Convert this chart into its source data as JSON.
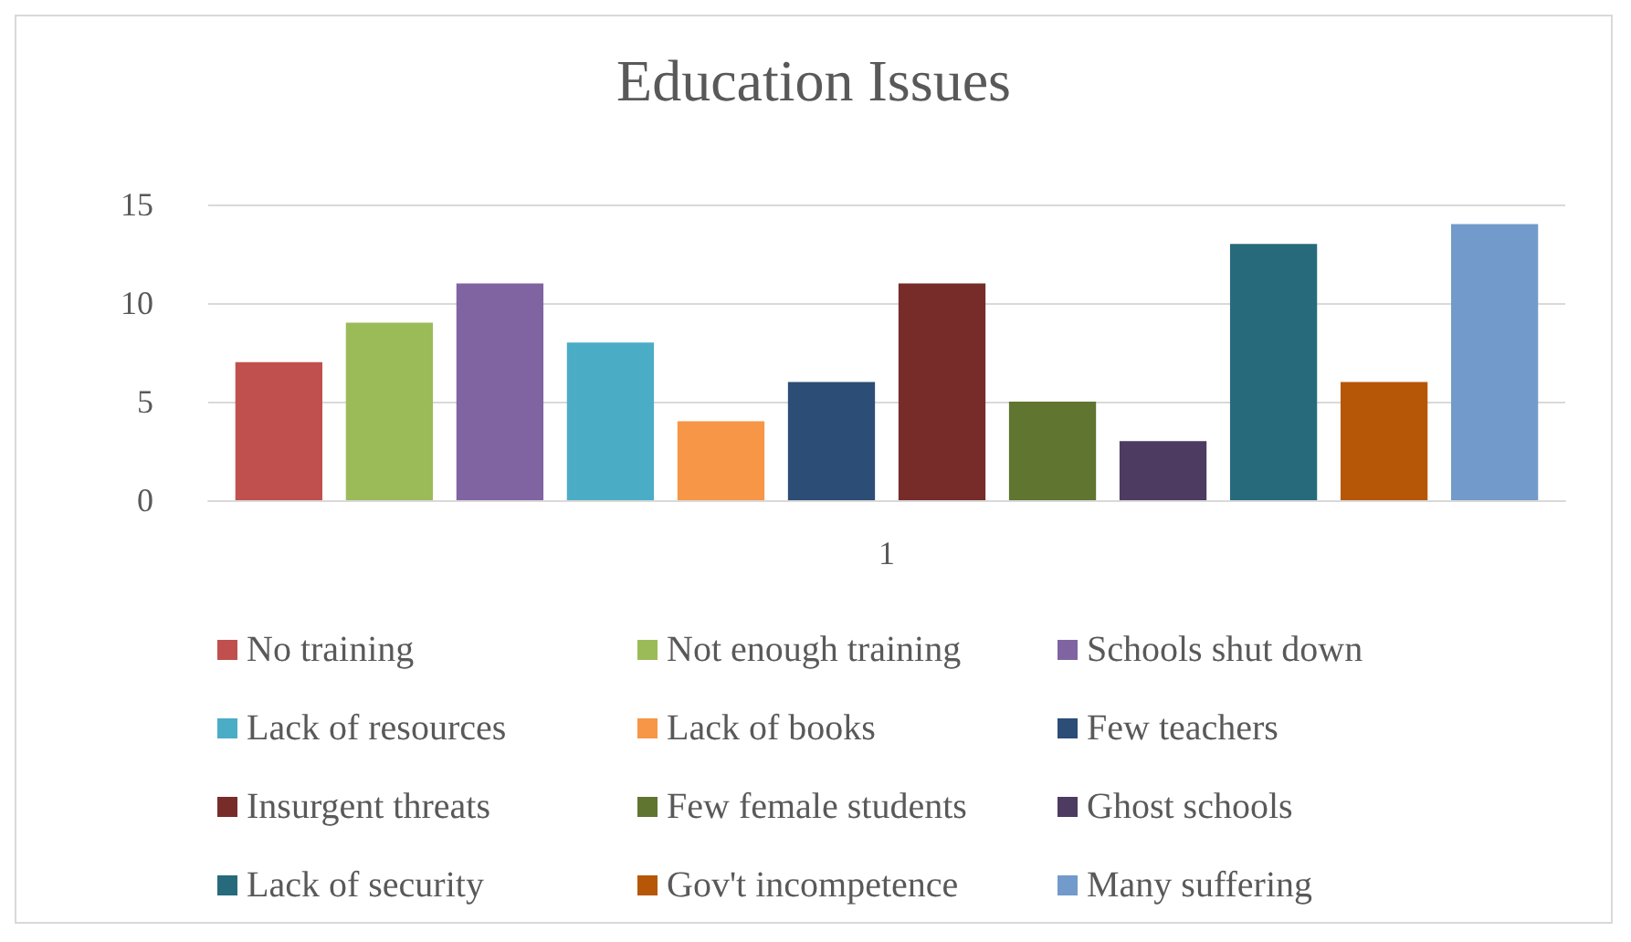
{
  "chart_data": {
    "type": "bar",
    "title": "Education Issues",
    "categories": [
      "1"
    ],
    "series": [
      {
        "name": "No training",
        "color": "#c0504d",
        "values": [
          7
        ]
      },
      {
        "name": "Not enough training",
        "color": "#9bbb59",
        "values": [
          9
        ]
      },
      {
        "name": "Schools shut down",
        "color": "#8064a2",
        "values": [
          11
        ]
      },
      {
        "name": "Lack of resources",
        "color": "#4bacc6",
        "values": [
          8
        ]
      },
      {
        "name": "Lack of books",
        "color": "#f79646",
        "values": [
          4
        ]
      },
      {
        "name": "Few teachers",
        "color": "#2c4d75",
        "values": [
          6
        ]
      },
      {
        "name": "Insurgent threats",
        "color": "#772c2a",
        "values": [
          11
        ]
      },
      {
        "name": "Few female students",
        "color": "#5f7530",
        "values": [
          5
        ]
      },
      {
        "name": "Ghost schools",
        "color": "#4d3b62",
        "values": [
          3
        ]
      },
      {
        "name": "Lack of security",
        "color": "#276a7c",
        "values": [
          13
        ]
      },
      {
        "name": "Gov't incompetence",
        "color": "#b65708",
        "values": [
          6
        ]
      },
      {
        "name": "Many suffering",
        "color": "#729aca",
        "values": [
          14
        ]
      }
    ],
    "ylim": [
      0,
      15
    ],
    "yticks": [
      0,
      5,
      10,
      15
    ],
    "grid": "y",
    "legend": "bottom"
  }
}
